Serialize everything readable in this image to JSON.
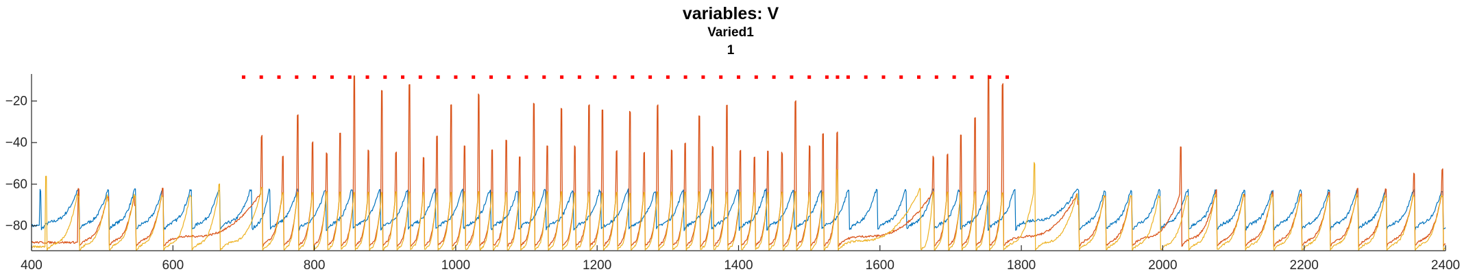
{
  "chart_data": {
    "type": "line",
    "title": "variables: V",
    "subtitle": "Varied1",
    "subtitle2": "1",
    "xlabel": "",
    "ylabel": "",
    "xlim": [
      400,
      2400
    ],
    "ylim": [
      -92,
      -7
    ],
    "xticks": [
      400,
      600,
      800,
      1000,
      1200,
      1400,
      1600,
      1800,
      2000,
      2200,
      2400
    ],
    "yticks": [
      -20,
      -40,
      -60,
      -80
    ],
    "grid": false,
    "legend": "none",
    "series": [
      {
        "color": "#0072BD",
        "baseline": -80,
        "peak": -63,
        "spike_times": [
          412,
          466,
          508,
          546,
          585,
          625,
          665,
          710,
          736,
          776,
          815,
          853,
          892,
          931,
          970,
          1009,
          1048,
          1087,
          1126,
          1165,
          1204,
          1243,
          1282,
          1321,
          1360,
          1399,
          1438,
          1477,
          1516,
          1555,
          1595,
          1636,
          1675,
          1712,
          1751,
          1790,
          1880,
          1918,
          1955,
          1995,
          2035,
          2075,
          2115,
          2155,
          2195,
          2235,
          2275,
          2315,
          2355,
          2395
        ],
        "spike_peaks": []
      },
      {
        "color": "#D95319",
        "baseline": -88,
        "peak": -65,
        "spike_times": [
          466,
          508,
          546,
          585,
          725,
          755,
          776,
          797,
          817,
          836,
          856,
          876,
          895,
          915,
          934,
          954,
          973,
          993,
          1012,
          1032,
          1051,
          1071,
          1090,
          1110,
          1129,
          1149,
          1168,
          1188,
          1207,
          1227,
          1246,
          1266,
          1285,
          1305,
          1324,
          1344,
          1363,
          1383,
          1402,
          1422,
          1441,
          1461,
          1480,
          1500,
          1519,
          1539,
          1675,
          1695,
          1714,
          1734,
          1753,
          1773,
          1880,
          1918,
          1955,
          2025,
          2075,
          2115,
          2155,
          2195,
          2235,
          2275,
          2315,
          2355,
          2395
        ],
        "spike_peaks": [
          -62,
          -66,
          -70,
          -62,
          -37,
          -47,
          -27,
          -40,
          -45,
          -35,
          -8,
          -44,
          -15,
          -45,
          -12,
          -47,
          -37,
          -22,
          -42,
          -17,
          -44,
          -39,
          -47,
          -21,
          -42,
          -24,
          -42,
          -22,
          -24,
          -44,
          -25,
          -45,
          -22,
          -44,
          -40,
          -27,
          -42,
          -22,
          -44,
          -47,
          -44,
          -45,
          -20,
          -42,
          -36,
          -35,
          -47,
          -46,
          -36,
          -28,
          -8,
          -12,
          -70,
          -66,
          -66,
          -42,
          -63,
          -65,
          -64,
          -65,
          -64,
          -62,
          -62,
          -55,
          -53
        ]
      },
      {
        "color": "#EDB120",
        "baseline": -90,
        "peak": -64,
        "spike_times": [
          420,
          466,
          508,
          546,
          585,
          625,
          665,
          725,
          755,
          776,
          797,
          817,
          836,
          856,
          876,
          895,
          915,
          934,
          954,
          973,
          993,
          1012,
          1032,
          1051,
          1071,
          1090,
          1110,
          1129,
          1149,
          1168,
          1188,
          1207,
          1227,
          1246,
          1266,
          1285,
          1305,
          1324,
          1344,
          1363,
          1383,
          1402,
          1422,
          1441,
          1461,
          1480,
          1500,
          1519,
          1539,
          1656,
          1675,
          1695,
          1714,
          1734,
          1753,
          1773,
          1818,
          1880,
          1918,
          1955,
          1995,
          2035,
          2075,
          2115,
          2155,
          2195,
          2235,
          2275,
          2315,
          2355,
          2395
        ],
        "spike_peaks": [
          -56,
          -66,
          -68,
          -66,
          -66,
          -66,
          -60,
          -62,
          -64,
          -64,
          -64,
          -64,
          -64,
          -64,
          -64,
          -64,
          -64,
          -64,
          -64,
          -64,
          -64,
          -64,
          -64,
          -64,
          -64,
          -64,
          -64,
          -64,
          -64,
          -64,
          -64,
          -64,
          -64,
          -64,
          -64,
          -64,
          -64,
          -64,
          -64,
          -64,
          -64,
          -64,
          -64,
          -64,
          -64,
          -64,
          -64,
          -64,
          -53,
          -62,
          -64,
          -64,
          -64,
          -64,
          -64,
          -64,
          -50,
          -68,
          -66,
          -66,
          -66,
          -66,
          -66,
          -66,
          -66,
          -66,
          -66,
          -66,
          -66,
          -66,
          -66
        ]
      }
    ],
    "markers": {
      "color": "#FF0000",
      "y": -8.5,
      "x": [
        700,
        725,
        750,
        775,
        800,
        825,
        850,
        875,
        900,
        925,
        950,
        975,
        1000,
        1025,
        1050,
        1075,
        1100,
        1125,
        1150,
        1175,
        1200,
        1225,
        1250,
        1275,
        1300,
        1325,
        1350,
        1375,
        1400,
        1425,
        1450,
        1475,
        1500,
        1525,
        1540,
        1555,
        1580,
        1605,
        1630,
        1655,
        1680,
        1705,
        1730,
        1755,
        1780
      ]
    }
  }
}
